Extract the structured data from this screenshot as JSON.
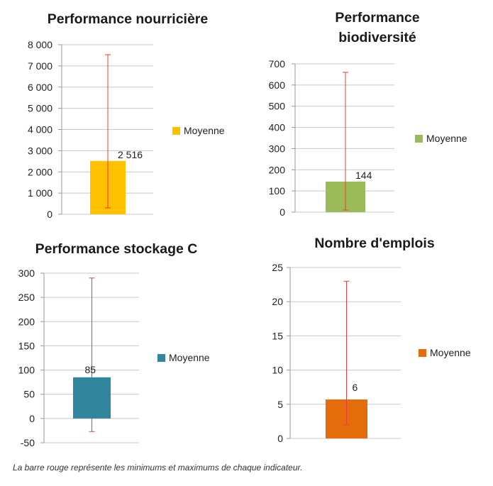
{
  "chart_data": [
    {
      "type": "bar",
      "title": "Performance nourricière",
      "categories": [
        ""
      ],
      "series": [
        {
          "name": "Moyenne",
          "values": [
            2516
          ]
        }
      ],
      "error_bar": {
        "min": 300,
        "max": 7530
      },
      "data_label": "2 516",
      "ylim": [
        0,
        8000
      ],
      "yticks": [
        0,
        1000,
        2000,
        3000,
        4000,
        5000,
        6000,
        7000,
        8000
      ],
      "ytick_labels": [
        "0",
        "1 000",
        "2 000",
        "3 000",
        "4 000",
        "5 000",
        "6 000",
        "7 000",
        "8 000"
      ],
      "color": "#ffc000",
      "grid": true,
      "legend": "right"
    },
    {
      "type": "bar",
      "title": "Performance biodiversité",
      "title_lines": [
        "Performance",
        "biodiversité"
      ],
      "categories": [
        ""
      ],
      "series": [
        {
          "name": "Moyenne",
          "values": [
            144
          ]
        }
      ],
      "error_bar": {
        "min": 10,
        "max": 660
      },
      "data_label": "144",
      "ylim": [
        0,
        700
      ],
      "yticks": [
        0,
        100,
        200,
        300,
        400,
        500,
        600,
        700
      ],
      "ytick_labels": [
        "0",
        "100",
        "200",
        "300",
        "400",
        "500",
        "600",
        "700"
      ],
      "color": "#9bbb59",
      "grid": true,
      "legend": "right"
    },
    {
      "type": "bar",
      "title": "Performance stockage C",
      "categories": [
        ""
      ],
      "series": [
        {
          "name": "Moyenne",
          "values": [
            85
          ]
        }
      ],
      "error_bar": {
        "min": -27,
        "max": 290
      },
      "data_label": "85",
      "ylim": [
        -50,
        300
      ],
      "yticks": [
        -50,
        0,
        50,
        100,
        150,
        200,
        250,
        300
      ],
      "ytick_labels": [
        "-50",
        "0",
        "50",
        "100",
        "150",
        "200",
        "250",
        "300"
      ],
      "color": "#31859c",
      "grid": true,
      "legend": "right"
    },
    {
      "type": "bar",
      "title": "Nombre d'emplois",
      "categories": [
        ""
      ],
      "series": [
        {
          "name": "Moyenne",
          "values": [
            5.7
          ]
        }
      ],
      "error_bar": {
        "min": 2,
        "max": 23
      },
      "data_label": "6",
      "ylim": [
        0,
        25
      ],
      "yticks": [
        0,
        5,
        10,
        15,
        20,
        25
      ],
      "ytick_labels": [
        "0",
        "5",
        "10",
        "15",
        "20",
        "25"
      ],
      "color": "#e46c0a",
      "grid": true,
      "legend": "right"
    }
  ],
  "caption": "La barre rouge représente les minimums et maximums de chaque indicateur.",
  "error_bar_color": "#e83c3c"
}
